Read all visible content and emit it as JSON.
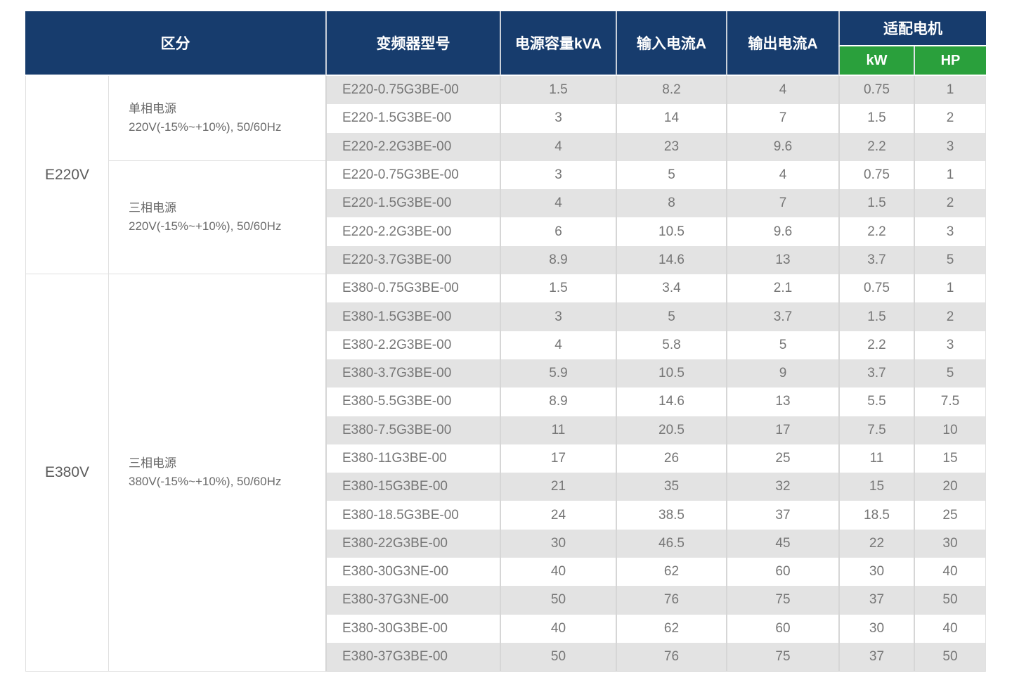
{
  "colors": {
    "header_navy": "#173c6d",
    "header_green": "#2aa03c",
    "row_gray": "#e3e3e3",
    "row_white": "#ffffff",
    "border": "#d6d6d6",
    "text_body": "#767676"
  },
  "header": {
    "category": "区分",
    "model": "变频器型号",
    "power_kva": "电源容量kVA",
    "input_current": "输入电流A",
    "output_current": "输出电流A",
    "motor": "适配电机",
    "kw": "kW",
    "hp": "HP"
  },
  "groups": [
    {
      "voltage": "E220V",
      "sections": [
        {
          "phase_title": "单相电源",
          "phase_detail": "220V(-15%~+10%), 50/60Hz",
          "rows": [
            {
              "model": "E220-0.75G3BE-00",
              "kva": "1.5",
              "input": "8.2",
              "output": "4",
              "kw": "0.75",
              "hp": "1"
            },
            {
              "model": "E220-1.5G3BE-00",
              "kva": "3",
              "input": "14",
              "output": "7",
              "kw": "1.5",
              "hp": "2"
            },
            {
              "model": "E220-2.2G3BE-00",
              "kva": "4",
              "input": "23",
              "output": "9.6",
              "kw": "2.2",
              "hp": "3"
            }
          ]
        },
        {
          "phase_title": "三相电源",
          "phase_detail": "220V(-15%~+10%), 50/60Hz",
          "rows": [
            {
              "model": "E220-0.75G3BE-00",
              "kva": "3",
              "input": "5",
              "output": "4",
              "kw": "0.75",
              "hp": "1"
            },
            {
              "model": "E220-1.5G3BE-00",
              "kva": "4",
              "input": "8",
              "output": "7",
              "kw": "1.5",
              "hp": "2"
            },
            {
              "model": "E220-2.2G3BE-00",
              "kva": "6",
              "input": "10.5",
              "output": "9.6",
              "kw": "2.2",
              "hp": "3"
            },
            {
              "model": "E220-3.7G3BE-00",
              "kva": "8.9",
              "input": "14.6",
              "output": "13",
              "kw": "3.7",
              "hp": "5"
            }
          ]
        }
      ]
    },
    {
      "voltage": "E380V",
      "sections": [
        {
          "phase_title": "三相电源",
          "phase_detail": "380V(-15%~+10%), 50/60Hz",
          "rows": [
            {
              "model": "E380-0.75G3BE-00",
              "kva": "1.5",
              "input": "3.4",
              "output": "2.1",
              "kw": "0.75",
              "hp": "1"
            },
            {
              "model": "E380-1.5G3BE-00",
              "kva": "3",
              "input": "5",
              "output": "3.7",
              "kw": "1.5",
              "hp": "2"
            },
            {
              "model": "E380-2.2G3BE-00",
              "kva": "4",
              "input": "5.8",
              "output": "5",
              "kw": "2.2",
              "hp": "3"
            },
            {
              "model": "E380-3.7G3BE-00",
              "kva": "5.9",
              "input": "10.5",
              "output": "9",
              "kw": "3.7",
              "hp": "5"
            },
            {
              "model": "E380-5.5G3BE-00",
              "kva": "8.9",
              "input": "14.6",
              "output": "13",
              "kw": "5.5",
              "hp": "7.5"
            },
            {
              "model": "E380-7.5G3BE-00",
              "kva": "11",
              "input": "20.5",
              "output": "17",
              "kw": "7.5",
              "hp": "10"
            },
            {
              "model": "E380-11G3BE-00",
              "kva": "17",
              "input": "26",
              "output": "25",
              "kw": "11",
              "hp": "15"
            },
            {
              "model": "E380-15G3BE-00",
              "kva": "21",
              "input": "35",
              "output": "32",
              "kw": "15",
              "hp": "20"
            },
            {
              "model": "E380-18.5G3BE-00",
              "kva": "24",
              "input": "38.5",
              "output": "37",
              "kw": "18.5",
              "hp": "25"
            },
            {
              "model": "E380-22G3BE-00",
              "kva": "30",
              "input": "46.5",
              "output": "45",
              "kw": "22",
              "hp": "30"
            },
            {
              "model": "E380-30G3NE-00",
              "kva": "40",
              "input": "62",
              "output": "60",
              "kw": "30",
              "hp": "40"
            },
            {
              "model": "E380-37G3NE-00",
              "kva": "50",
              "input": "76",
              "output": "75",
              "kw": "37",
              "hp": "50"
            },
            {
              "model": "E380-30G3BE-00",
              "kva": "40",
              "input": "62",
              "output": "60",
              "kw": "30",
              "hp": "40"
            },
            {
              "model": "E380-37G3BE-00",
              "kva": "50",
              "input": "76",
              "output": "75",
              "kw": "37",
              "hp": "50"
            }
          ]
        }
      ]
    }
  ]
}
